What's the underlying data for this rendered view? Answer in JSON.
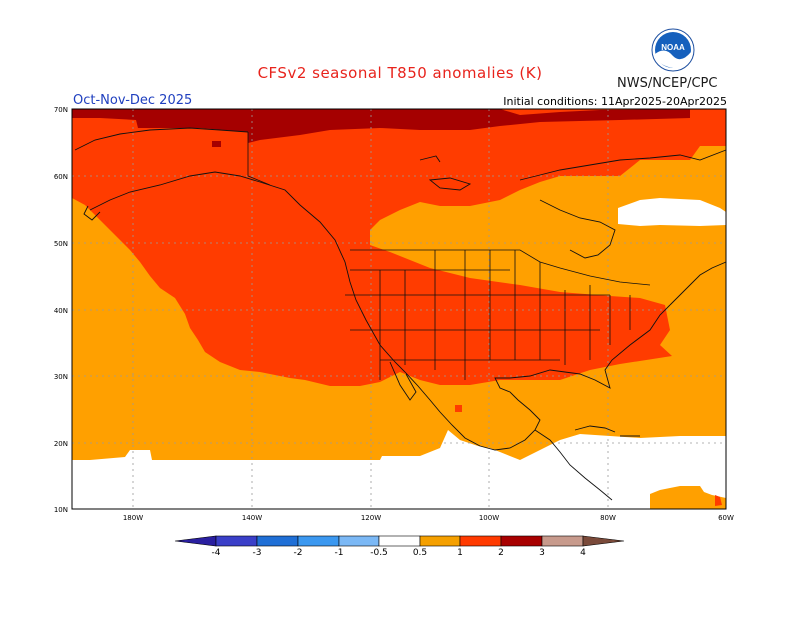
{
  "title": "CFSv2 seasonal T850 anomalies (K)",
  "period": "Oct-Nov-Dec 2025",
  "initial_conditions": "Initial conditions: 11Apr2025-20Apr2025",
  "agency": "NWS/NCEP/CPC",
  "logo_text": "NOAA",
  "lat_labels": [
    "70N",
    "60N",
    "50N",
    "40N",
    "30N",
    "20N",
    "10N"
  ],
  "lon_labels": [
    "180W",
    "140W",
    "120W",
    "100W",
    "80W",
    "60W"
  ],
  "legend": {
    "labels": [
      "-4",
      "-3",
      "-2",
      "-1",
      "-0.5",
      "0.5",
      "1",
      "2",
      "3",
      "4"
    ],
    "colors": [
      "#2a1fa0",
      "#3a3fc8",
      "#1f6fd6",
      "#3b98f0",
      "#7bb8f5",
      "#ffffff",
      "#f5a000",
      "#ff3a00",
      "#a80000",
      "#c79a8c",
      "#7a4a3a"
    ]
  },
  "anomaly_colors": {
    "none": "#ffffff",
    "0.5_to_1": "#ffa000",
    "1_to_2": "#ff3c00",
    "2_to_3": "#a50000"
  }
}
